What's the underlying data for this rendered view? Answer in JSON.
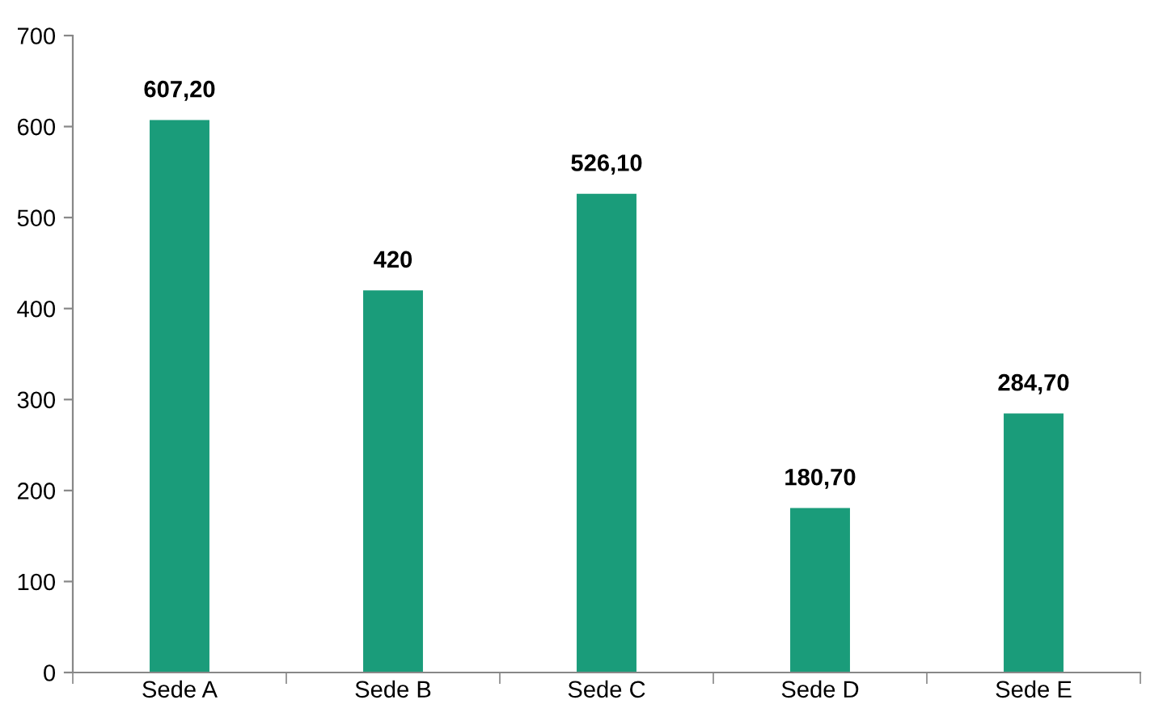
{
  "chart_data": {
    "type": "bar",
    "categories": [
      "Sede A",
      "Sede B",
      "Sede C",
      "Sede D",
      "Sede E"
    ],
    "values": [
      607.2,
      420,
      526.1,
      180.7,
      284.7
    ],
    "value_labels": [
      "607,20",
      "420",
      "526,10",
      "180,70",
      "284,70"
    ],
    "color": "#1a9c7a",
    "ylim": [
      0,
      700
    ],
    "yticks": [
      0,
      100,
      200,
      300,
      400,
      500,
      600,
      700
    ],
    "grid": false,
    "legend": false
  }
}
